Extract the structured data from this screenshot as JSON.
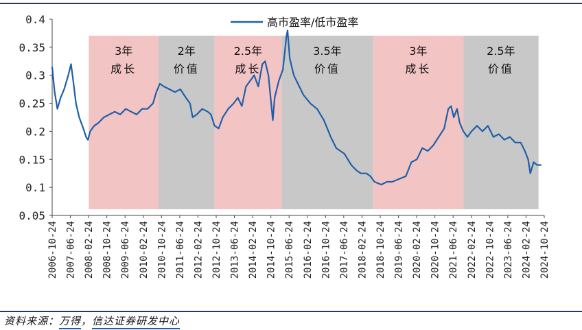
{
  "chart_data": {
    "type": "line",
    "title": "",
    "xlabel": "",
    "ylabel": "",
    "ylim": [
      0.05,
      0.4
    ],
    "yticks": [
      "0.05",
      "0.1",
      "0.15",
      "0.2",
      "0.25",
      "0.3",
      "0.35",
      "0.4"
    ],
    "xticks": [
      "2006-10-24",
      "2007-06-24",
      "2008-02-24",
      "2008-10-24",
      "2009-06-24",
      "2010-02-24",
      "2010-10-24",
      "2011-06-24",
      "2012-02-24",
      "2012-10-24",
      "2013-06-24",
      "2014-02-24",
      "2014-10-24",
      "2015-06-24",
      "2016-02-24",
      "2016-10-24",
      "2017-06-24",
      "2018-02-24",
      "2018-10-24",
      "2019-06-24",
      "2020-02-24",
      "2020-10-24",
      "2021-06-24",
      "2022-02-24",
      "2022-10-24",
      "2023-06-24",
      "2024-02-24",
      "2024-10-24"
    ],
    "legend": {
      "position": "top-center",
      "label": "高市盈率/低市盈率"
    },
    "series": [
      {
        "name": "高市盈率/低市盈率",
        "color": "#1f5fa8",
        "points": [
          [
            2006.81,
            0.315
          ],
          [
            2006.9,
            0.27
          ],
          [
            2007.0,
            0.24
          ],
          [
            2007.12,
            0.26
          ],
          [
            2007.25,
            0.275
          ],
          [
            2007.4,
            0.3
          ],
          [
            2007.5,
            0.32
          ],
          [
            2007.58,
            0.29
          ],
          [
            2007.68,
            0.25
          ],
          [
            2007.8,
            0.225
          ],
          [
            2007.95,
            0.205
          ],
          [
            2008.05,
            0.19
          ],
          [
            2008.12,
            0.185
          ],
          [
            2008.2,
            0.2
          ],
          [
            2008.35,
            0.21
          ],
          [
            2008.5,
            0.215
          ],
          [
            2008.7,
            0.225
          ],
          [
            2008.9,
            0.23
          ],
          [
            2009.1,
            0.235
          ],
          [
            2009.3,
            0.23
          ],
          [
            2009.5,
            0.24
          ],
          [
            2009.7,
            0.235
          ],
          [
            2009.9,
            0.23
          ],
          [
            2010.1,
            0.24
          ],
          [
            2010.3,
            0.24
          ],
          [
            2010.5,
            0.25
          ],
          [
            2010.62,
            0.27
          ],
          [
            2010.75,
            0.285
          ],
          [
            2010.9,
            0.28
          ],
          [
            2011.1,
            0.275
          ],
          [
            2011.3,
            0.27
          ],
          [
            2011.5,
            0.275
          ],
          [
            2011.7,
            0.26
          ],
          [
            2011.85,
            0.25
          ],
          [
            2011.95,
            0.225
          ],
          [
            2012.1,
            0.23
          ],
          [
            2012.3,
            0.24
          ],
          [
            2012.5,
            0.235
          ],
          [
            2012.62,
            0.23
          ],
          [
            2012.75,
            0.21
          ],
          [
            2012.9,
            0.205
          ],
          [
            2013.05,
            0.225
          ],
          [
            2013.25,
            0.24
          ],
          [
            2013.45,
            0.25
          ],
          [
            2013.6,
            0.26
          ],
          [
            2013.75,
            0.245
          ],
          [
            2013.9,
            0.28
          ],
          [
            2014.05,
            0.29
          ],
          [
            2014.2,
            0.3
          ],
          [
            2014.35,
            0.28
          ],
          [
            2014.5,
            0.32
          ],
          [
            2014.6,
            0.325
          ],
          [
            2014.72,
            0.3
          ],
          [
            2014.82,
            0.25
          ],
          [
            2014.88,
            0.22
          ],
          [
            2014.95,
            0.26
          ],
          [
            2015.1,
            0.29
          ],
          [
            2015.25,
            0.31
          ],
          [
            2015.38,
            0.37
          ],
          [
            2015.42,
            0.38
          ],
          [
            2015.5,
            0.33
          ],
          [
            2015.65,
            0.3
          ],
          [
            2015.8,
            0.285
          ],
          [
            2016.0,
            0.265
          ],
          [
            2016.25,
            0.25
          ],
          [
            2016.5,
            0.24
          ],
          [
            2016.75,
            0.22
          ],
          [
            2017.0,
            0.19
          ],
          [
            2017.2,
            0.17
          ],
          [
            2017.5,
            0.16
          ],
          [
            2017.75,
            0.14
          ],
          [
            2017.95,
            0.13
          ],
          [
            2018.1,
            0.125
          ],
          [
            2018.3,
            0.125
          ],
          [
            2018.45,
            0.12
          ],
          [
            2018.6,
            0.11
          ],
          [
            2018.85,
            0.105
          ],
          [
            2019.05,
            0.11
          ],
          [
            2019.25,
            0.11
          ],
          [
            2019.5,
            0.115
          ],
          [
            2019.75,
            0.12
          ],
          [
            2019.95,
            0.145
          ],
          [
            2020.15,
            0.15
          ],
          [
            2020.35,
            0.17
          ],
          [
            2020.55,
            0.165
          ],
          [
            2020.75,
            0.175
          ],
          [
            2020.95,
            0.19
          ],
          [
            2021.15,
            0.205
          ],
          [
            2021.3,
            0.24
          ],
          [
            2021.4,
            0.245
          ],
          [
            2021.5,
            0.225
          ],
          [
            2021.62,
            0.24
          ],
          [
            2021.72,
            0.215
          ],
          [
            2021.85,
            0.2
          ],
          [
            2022.0,
            0.19
          ],
          [
            2022.15,
            0.2
          ],
          [
            2022.35,
            0.21
          ],
          [
            2022.55,
            0.2
          ],
          [
            2022.75,
            0.21
          ],
          [
            2022.95,
            0.19
          ],
          [
            2023.15,
            0.195
          ],
          [
            2023.35,
            0.185
          ],
          [
            2023.55,
            0.19
          ],
          [
            2023.75,
            0.18
          ],
          [
            2023.95,
            0.18
          ],
          [
            2024.1,
            0.165
          ],
          [
            2024.22,
            0.15
          ],
          [
            2024.3,
            0.125
          ],
          [
            2024.42,
            0.145
          ],
          [
            2024.55,
            0.14
          ],
          [
            2024.7,
            0.14
          ]
        ]
      }
    ],
    "regions": [
      {
        "start": 2008.15,
        "end": 2010.7,
        "phase": "3年",
        "style": "成长",
        "fill": "#f2c4c4"
      },
      {
        "start": 2010.7,
        "end": 2012.75,
        "phase": "2年",
        "style": "价值",
        "fill": "#c8c8c8"
      },
      {
        "start": 2012.75,
        "end": 2015.2,
        "phase": "2.5年",
        "style": "成长",
        "fill": "#f2c4c4"
      },
      {
        "start": 2015.2,
        "end": 2018.55,
        "phase": "3.5年",
        "style": "价值",
        "fill": "#c8c8c8"
      },
      {
        "start": 2018.55,
        "end": 2021.85,
        "phase": "3年",
        "style": "成长",
        "fill": "#f2c4c4"
      },
      {
        "start": 2021.85,
        "end": 2024.6,
        "phase": "2.5年",
        "style": "价值",
        "fill": "#c8c8c8"
      }
    ]
  },
  "footer": {
    "prefix": "资料来源：",
    "source1": "万得",
    "sep": "，",
    "source2": "信达证券研发中心"
  }
}
